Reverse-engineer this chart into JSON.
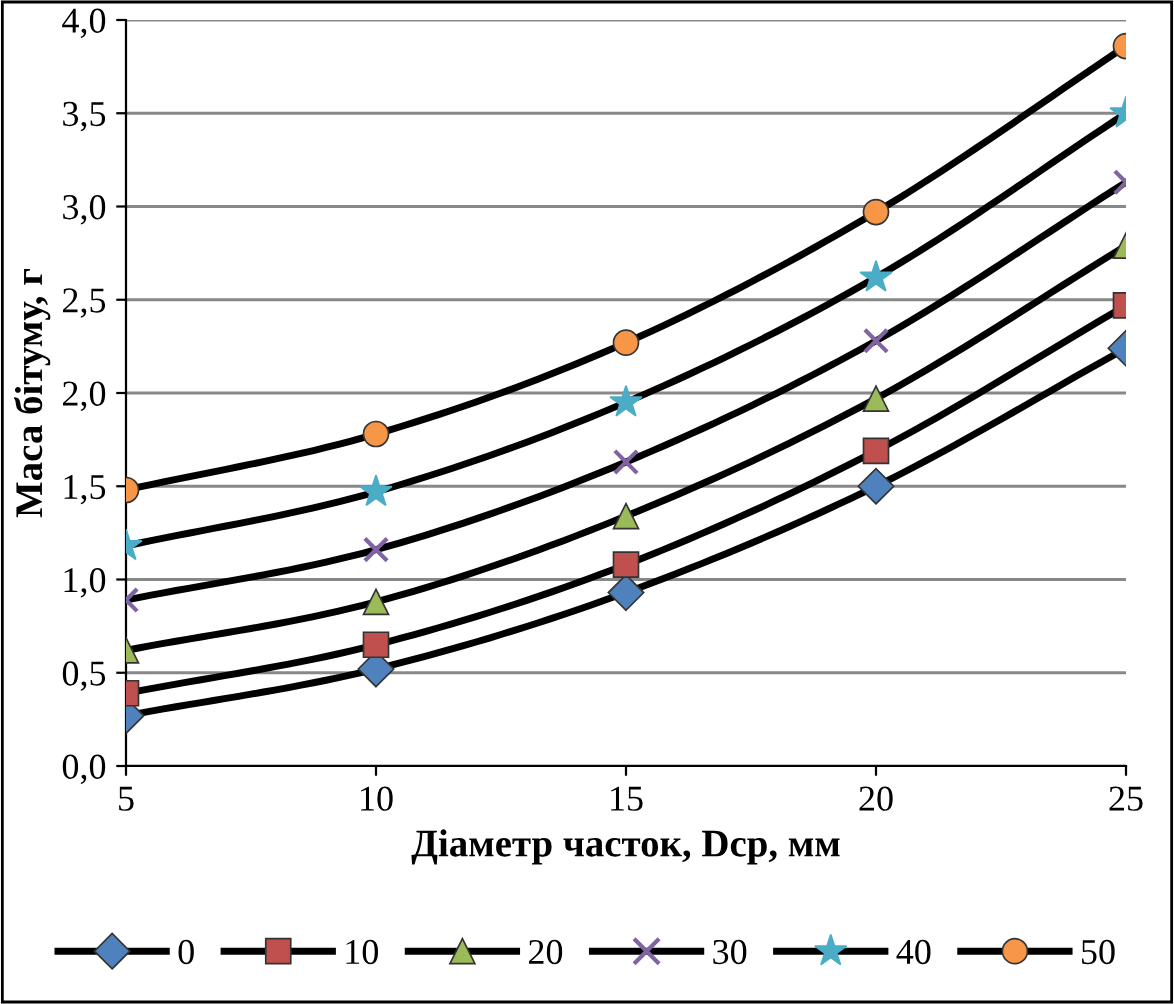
{
  "chart_data": {
    "type": "line",
    "xlabel": "Діаметр часток, Dcp, мм",
    "ylabel": "Маса бітуму, г",
    "x": [
      5,
      10,
      15,
      20,
      25
    ],
    "xlim": [
      5,
      25
    ],
    "xticks": [
      5,
      10,
      15,
      20,
      25
    ],
    "ylim": [
      0,
      4
    ],
    "yticks": [
      {
        "value": 0,
        "label": "0,0"
      },
      {
        "value": 0.5,
        "label": "0,5"
      },
      {
        "value": 1,
        "label": "1,0"
      },
      {
        "value": 1.5,
        "label": "1,5"
      },
      {
        "value": 2,
        "label": "2,0"
      },
      {
        "value": 2.5,
        "label": "2,5"
      },
      {
        "value": 3,
        "label": "3,0"
      },
      {
        "value": 3.5,
        "label": "3,5"
      },
      {
        "value": 4,
        "label": "4,0"
      }
    ],
    "grid": "y",
    "legend": "bottom",
    "series": [
      {
        "name": "0",
        "color": "#4f81bd",
        "marker": "diamond",
        "values": [
          0.27,
          0.52,
          0.93,
          1.5,
          2.24
        ]
      },
      {
        "name": "10",
        "color": "#c0504d",
        "marker": "square",
        "values": [
          0.39,
          0.65,
          1.08,
          1.69,
          2.47
        ]
      },
      {
        "name": "20",
        "color": "#9bbb59",
        "marker": "triangle",
        "values": [
          0.62,
          0.88,
          1.34,
          1.97,
          2.79
        ]
      },
      {
        "name": "30",
        "color": "#8064a2",
        "marker": "cross",
        "values": [
          0.89,
          1.16,
          1.63,
          2.28,
          3.13
        ]
      },
      {
        "name": "40",
        "color": "#4bacc6",
        "marker": "star",
        "values": [
          1.18,
          1.47,
          1.95,
          2.62,
          3.5
        ]
      },
      {
        "name": "50",
        "color": "#f79646",
        "marker": "circle",
        "values": [
          1.48,
          1.78,
          2.27,
          2.97,
          3.86
        ]
      }
    ]
  }
}
